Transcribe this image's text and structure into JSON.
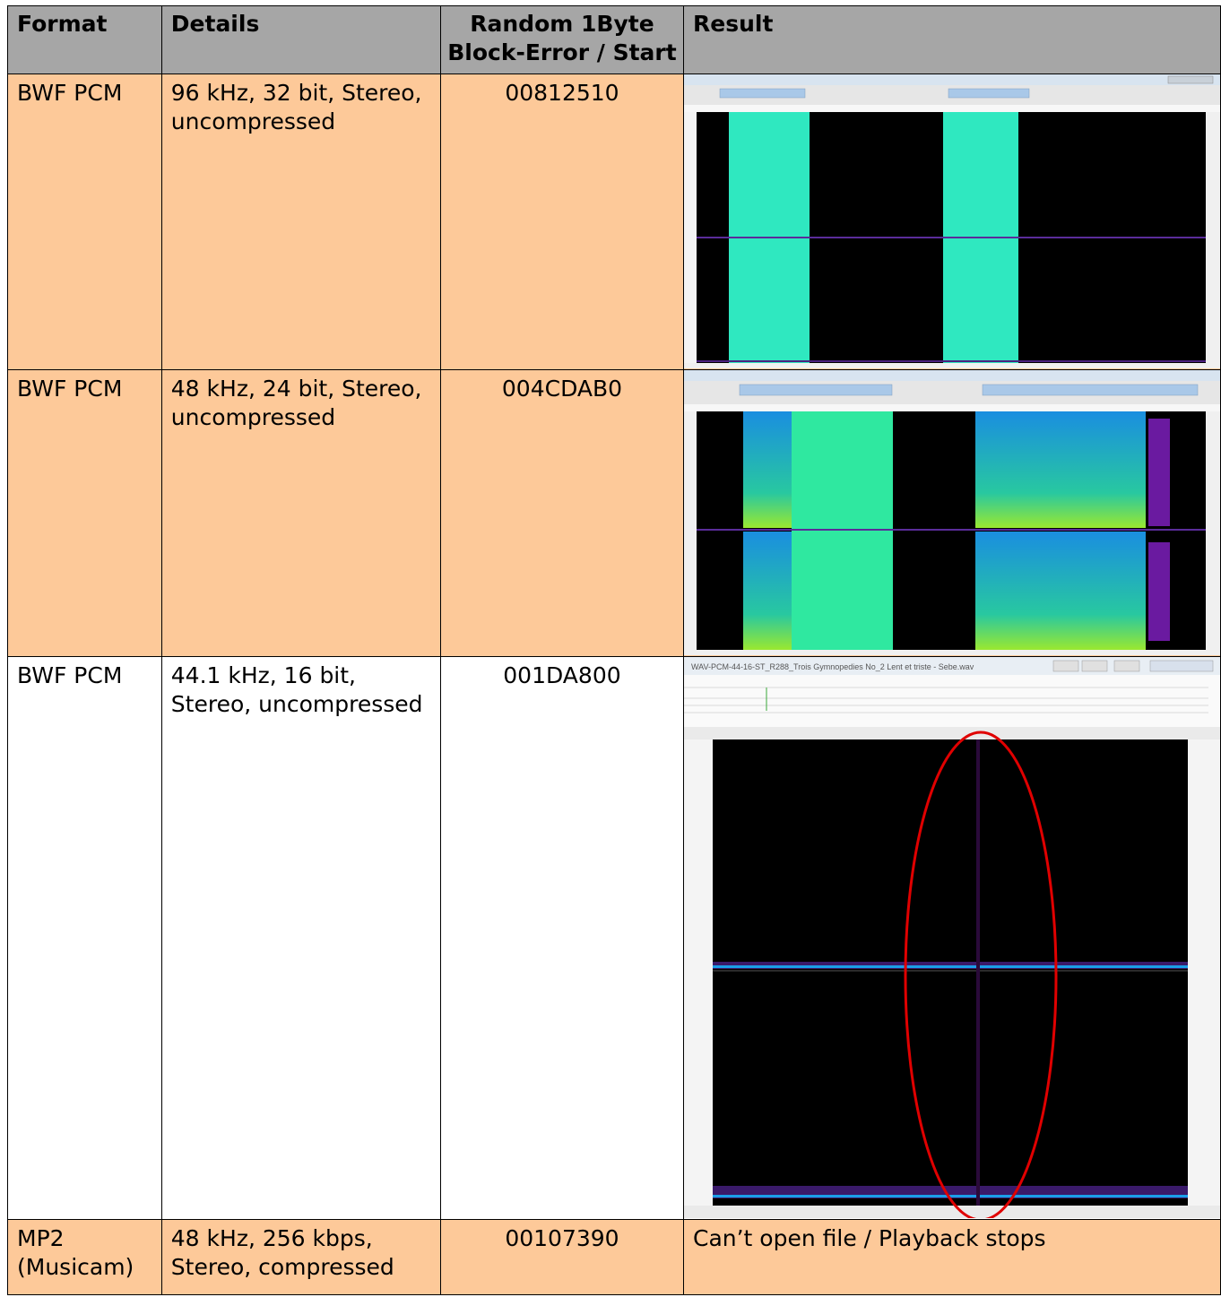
{
  "table": {
    "headers": {
      "format": "Format",
      "details": "Details",
      "error_line1": "Random 1Byte",
      "error_line2": "Block-Error / Start",
      "result": "Result"
    },
    "rows": [
      {
        "format_line1": "BWF PCM",
        "format_line2": "",
        "details_line1": "96 kHz, 32 bit, Stereo,",
        "details_line2": "uncompressed",
        "error_start": "00812510",
        "result_type": "spectrogram-screenshot"
      },
      {
        "format_line1": "BWF PCM",
        "format_line2": "",
        "details_line1": "48 kHz, 24 bit, Stereo,",
        "details_line2": "uncompressed",
        "error_start": "004CDAB0",
        "result_type": "spectrogram-screenshot"
      },
      {
        "format_line1": "BWF PCM",
        "format_line2": "",
        "details_line1": "44.1 kHz, 16 bit,",
        "details_line2": "Stereo, uncompressed",
        "error_start": "001DA800",
        "result_type": "spectrogram-screenshot",
        "window_title": "WAV-PCM-44-16-ST_R288_Trois Gymnopedies  No_2 Lent et triste - Sebe.wav"
      },
      {
        "format_line1": "MP2",
        "format_line2": "(Musicam)",
        "details_line1": "48 kHz, 256 kbps,",
        "details_line2": "Stereo, compressed",
        "error_start": "00107390",
        "result_text": "Can’t open file / Playback stops"
      }
    ]
  },
  "colors": {
    "header_bg": "#a6a6a6",
    "orange_row_bg": "#fdc999",
    "spectrogram_bg": "#000000",
    "cyan_block": "#2fe8c0",
    "highlight_ellipse": "#e00000"
  }
}
